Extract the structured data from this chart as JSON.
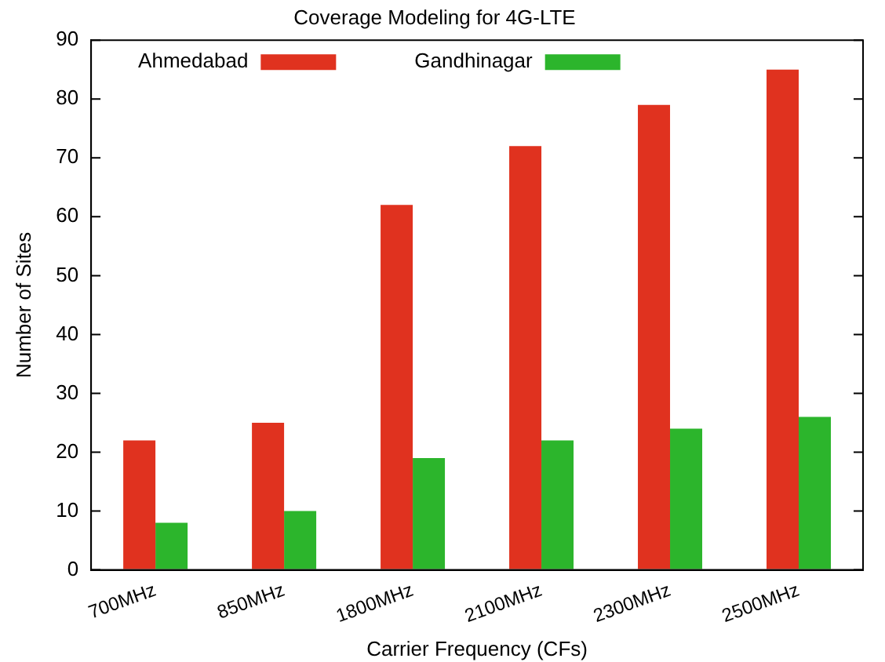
{
  "chart_data": {
    "type": "bar",
    "title": "Coverage Modeling for 4G-LTE",
    "xlabel": "Carrier Frequency (CFs)",
    "ylabel": "Number of Sites",
    "categories": [
      "700MHz",
      "850MHz",
      "1800MHz",
      "2100MHz",
      "2300MHz",
      "2500MHz"
    ],
    "series": [
      {
        "name": "Ahmedabad",
        "color": "#e0321f",
        "values": [
          22,
          25,
          62,
          72,
          79,
          85
        ]
      },
      {
        "name": "Gandhinagar",
        "color": "#2cb52c",
        "values": [
          8,
          10,
          19,
          22,
          24,
          26
        ]
      }
    ],
    "ylim": [
      0,
      90
    ],
    "yticks": [
      0,
      10,
      20,
      30,
      40,
      50,
      60,
      70,
      80,
      90
    ],
    "grid": false,
    "legend": "top left"
  }
}
